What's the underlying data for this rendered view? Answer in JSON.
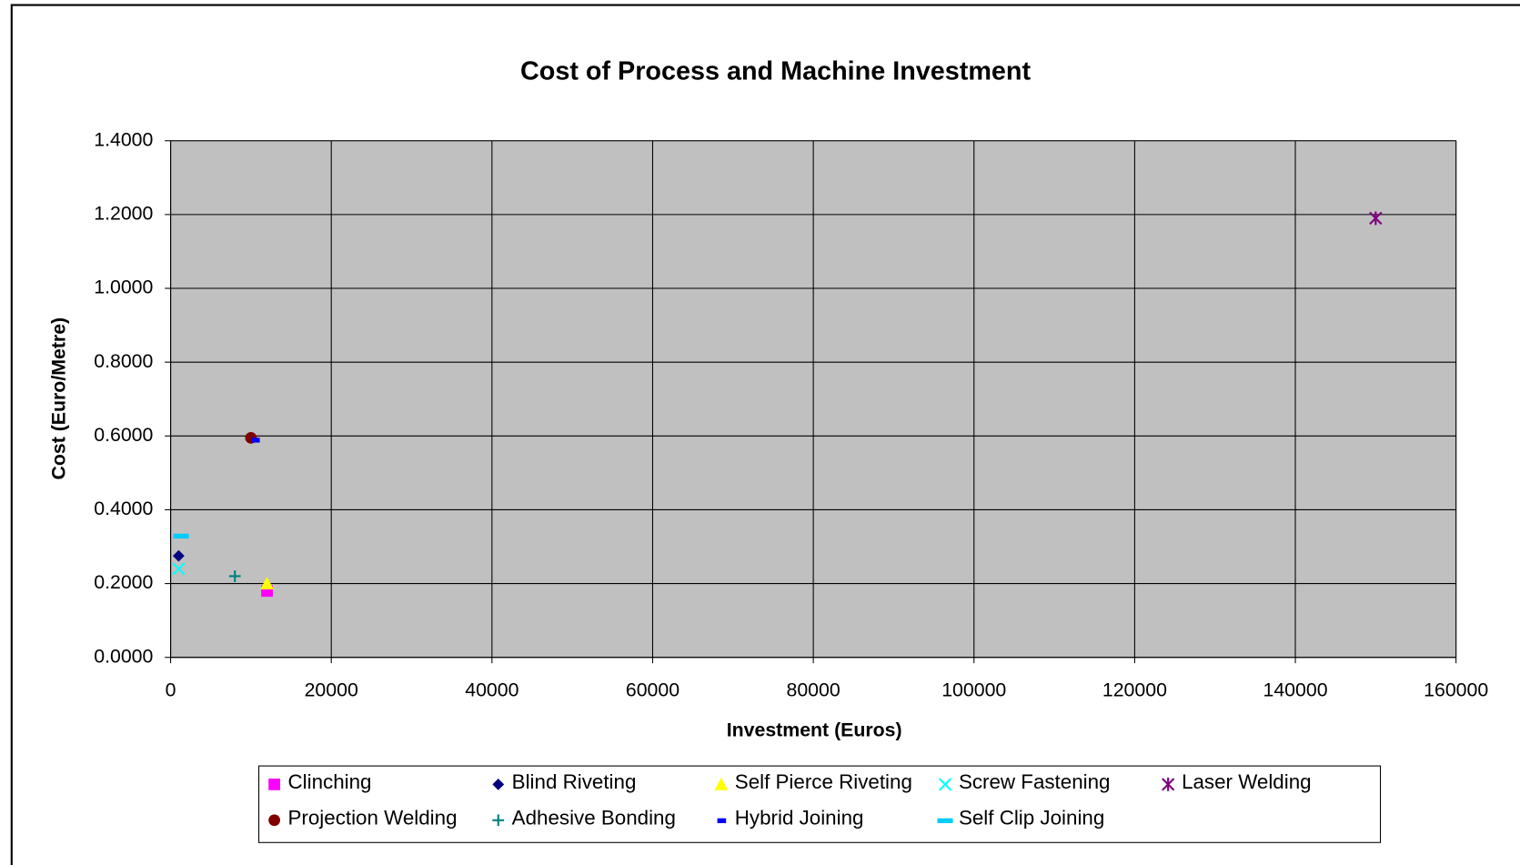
{
  "chart_data": {
    "type": "scatter",
    "title": "Cost of Process and Machine Investment",
    "x_label": "Investment (Euros)",
    "y_label": "Cost (Euro/Metre)",
    "xlim": [
      0,
      160000
    ],
    "xticks": [
      0,
      20000,
      40000,
      60000,
      80000,
      100000,
      120000,
      140000,
      160000
    ],
    "ylim": [
      0,
      1.4
    ],
    "yticks": [
      {
        "value": 0,
        "label": "0.0000"
      },
      {
        "value": 0.2,
        "label": "0.2000"
      },
      {
        "value": 0.4,
        "label": "0.4000"
      },
      {
        "value": 0.6,
        "label": "0.6000"
      },
      {
        "value": 0.8,
        "label": "0.8000"
      },
      {
        "value": 1.0,
        "label": "1.0000"
      },
      {
        "value": 1.2,
        "label": "1.2000"
      },
      {
        "value": 1.4,
        "label": "1.4000"
      }
    ],
    "grid": true,
    "legend": "bottom",
    "series": [
      {
        "name": "Clinching",
        "color": "#ff00ff",
        "marker": "square",
        "x": [
          12000
        ],
        "values": [
          0.18
        ]
      },
      {
        "name": "Blind Riveting",
        "color": "#000080",
        "marker": "diamond",
        "x": [
          1000
        ],
        "values": [
          0.275
        ]
      },
      {
        "name": "Self Pierce Riveting",
        "color": "#ffff00",
        "marker": "triangle",
        "x": [
          12000
        ],
        "values": [
          0.2
        ]
      },
      {
        "name": "Screw Fastening",
        "color": "#00ffff",
        "marker": "x",
        "x": [
          1000
        ],
        "values": [
          0.24
        ]
      },
      {
        "name": "Laser Welding",
        "color": "#800080",
        "marker": "star",
        "x": [
          150000
        ],
        "values": [
          1.19
        ]
      },
      {
        "name": "Projection Welding",
        "color": "#800000",
        "marker": "circle",
        "x": [
          10000
        ],
        "values": [
          0.595
        ]
      },
      {
        "name": "Adhesive Bonding",
        "color": "#008080",
        "marker": "plus",
        "x": [
          8000
        ],
        "values": [
          0.22
        ]
      },
      {
        "name": "Hybrid Joining",
        "color": "#0000ff",
        "marker": "dash",
        "x": [
          10500
        ],
        "values": [
          0.59
        ]
      },
      {
        "name": "Self Clip Joining",
        "color": "#00ccff",
        "marker": "longdash",
        "x": [
          1300
        ],
        "values": [
          0.33
        ]
      }
    ]
  }
}
